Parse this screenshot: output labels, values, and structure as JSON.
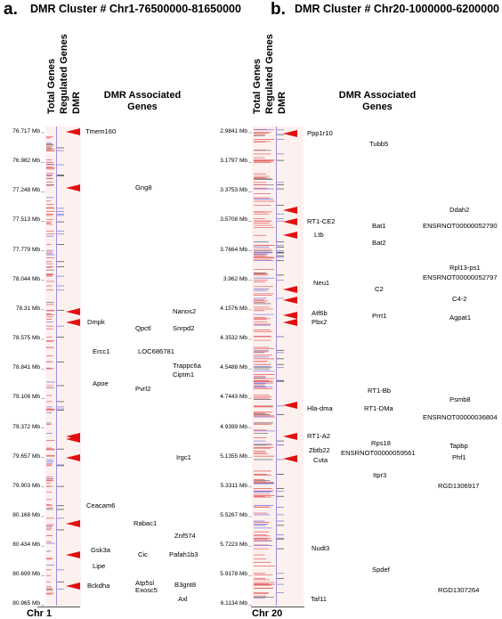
{
  "panel_a": {
    "letter": "a.",
    "title": "DMR Cluster # Chr1-76500000-81650000",
    "col_total": "Total Genes",
    "col_regulated": "Regulated Genes",
    "col_dmr": "DMR",
    "assoc_line1": "DMR Associated",
    "assoc_line2": "Genes",
    "chr": "Chr 1",
    "ticks": [
      "76.717 Mb",
      "76.982 Mb",
      "77.248 Mb",
      "77.513 Mb",
      "77.779 Mb",
      "78.044 Mb",
      "78.31 Mb",
      "78.575 Mb",
      "78.841 Mb",
      "79.106 Mb",
      "79.372 Mb",
      "79.657 Mb",
      "79.903 Mb",
      "80.168 Mb",
      "80.434 Mb",
      "80.699 Mb",
      "80.965 Mb"
    ],
    "genes": [
      "Tmem160",
      "Gng8",
      "Nanos2",
      "Dmpk",
      "Qpctl",
      "Snrpd2",
      "Ercc1",
      "LOC686781",
      "Trappc6a",
      "Ciptm1",
      "Apoe",
      "Pvrl2",
      "Irgc1",
      "Ceacam6",
      "Rabac1",
      "Znf574",
      "Gsk3a",
      "Cic",
      "Pafah1b3",
      "Lipe",
      "Bckdha",
      "Atp5sl",
      "Exosc5",
      "B3gnt8",
      "Axl"
    ]
  },
  "panel_b": {
    "letter": "b.",
    "title": "DMR Cluster # Chr20-1000000-6200000",
    "col_total": "Total Genes",
    "col_regulated": "Regulated Genes",
    "col_dmr": "DMR",
    "assoc_line1": "DMR Associated",
    "assoc_line2": "Genes",
    "chr": "Chr 20",
    "ticks": [
      "2.9841 Mb",
      "3.1797 Mb",
      "3.3753 Mb",
      "3.5708 Mb",
      "3.7664 Mb",
      "3.962 Mb",
      "4.1576 Mb",
      "4.3532 Mb",
      "4.5488 Mb",
      "4.7443 Mb",
      "4.9399 Mb",
      "5.1355 Mb",
      "5.3311 Mb",
      "5.5267 Mb",
      "5.7223 Mb",
      "5.9178 Mb",
      "6.1134 Mb"
    ],
    "genes": [
      "Ppp1r10",
      "Tubb5",
      "Ddah2",
      "RT1-CE2",
      "Bat1",
      "ENSRNOT00000052790",
      "Ltb",
      "Bat2",
      "Rpl13-ps1",
      "ENSRNOT00000052797",
      "Neu1",
      "C2",
      "C4-2",
      "Atf6b",
      "Pbx2",
      "Prrt1",
      "Agpat1",
      "RT1-Bb",
      "Psmb8",
      "Hla-dma",
      "RT1-DMa",
      "ENSRNOT00000036804",
      "RT1-A2",
      "Rps18",
      "Tapbp",
      "Zbtb22",
      "ENSRNOT00000059561",
      "Phf1",
      "Cuta",
      "Itpr3",
      "RGD1306917",
      "Nudt3",
      "Spdef",
      "RGD1307264",
      "Taf11"
    ]
  }
}
